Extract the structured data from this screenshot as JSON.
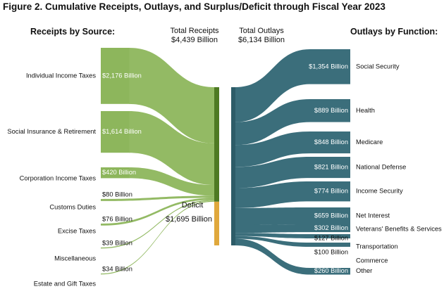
{
  "title": "Figure 2. Cumulative Receipts, Outlays, and Surplus/Deficit through Fiscal Year 2023",
  "receipts_header": "Receipts by Source:",
  "outlays_header": "Outlays by Function:",
  "total_receipts": {
    "label": "Total Receipts",
    "value": "$4,439 Billion"
  },
  "total_outlays": {
    "label": "Total Outlays",
    "value": "$6,134 Billion"
  },
  "deficit": {
    "label": "Deficit",
    "value": "$1,695 Billion"
  },
  "colors": {
    "receipts": "#8db65c",
    "receipts_bar": "#4e7a23",
    "deficit": "#e0a83c",
    "outlays": "#3b6e7b",
    "outlays_bar": "#2d5c68"
  },
  "chart_data": {
    "type": "sankey",
    "unit": "Billion",
    "receipts": [
      {
        "name": "Individual Income Taxes",
        "value": 2176,
        "label": "$2,176 Billion"
      },
      {
        "name": "Social Insurance & Retirement",
        "value": 1614,
        "label": "$1,614 Billion"
      },
      {
        "name": "Corporation Income Taxes",
        "value": 420,
        "label": "$420 Billion"
      },
      {
        "name": "Customs Duties",
        "value": 80,
        "label": "$80 Billion"
      },
      {
        "name": "Excise Taxes",
        "value": 76,
        "label": "$76 Billion"
      },
      {
        "name": "Miscellaneous",
        "value": 39,
        "label": "$39 Billion"
      },
      {
        "name": "Estate and Gift Taxes",
        "value": 34,
        "label": "$34 Billion"
      }
    ],
    "deficit": 1695,
    "total_receipts": 4439,
    "total_outlays": 6134,
    "outlays": [
      {
        "name": "Social Security",
        "value": 1354,
        "label": "$1,354 Billion"
      },
      {
        "name": "Health",
        "value": 889,
        "label": "$889 Billion"
      },
      {
        "name": "Medicare",
        "value": 848,
        "label": "$848 Billion"
      },
      {
        "name": "National Defense",
        "value": 821,
        "label": "$821 Billion"
      },
      {
        "name": "Income Security",
        "value": 774,
        "label": "$774 Billion"
      },
      {
        "name": "Net Interest",
        "value": 659,
        "label": "$659 Billion"
      },
      {
        "name": "Veterans' Benefits & Services",
        "value": 302,
        "label": "$302 Billion"
      },
      {
        "name": "Transportation",
        "value": 127,
        "label": "$127 Billion"
      },
      {
        "name": "Commerce",
        "value": 100,
        "label": "$100 Billion"
      },
      {
        "name": "Other",
        "value": 260,
        "label": "$260 Billion"
      }
    ]
  }
}
